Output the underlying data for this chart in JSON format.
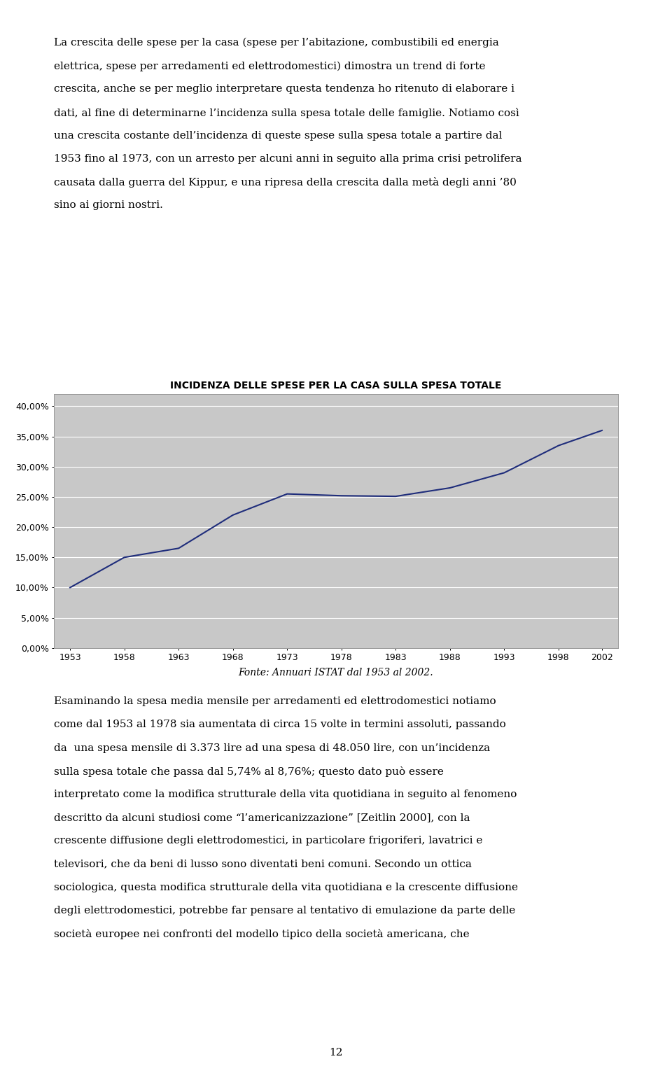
{
  "title": "INCIDENZA DELLE SPESE PER LA CASA SULLA SPESA TOTALE",
  "years": [
    1953,
    1958,
    1963,
    1968,
    1973,
    1978,
    1983,
    1988,
    1993,
    1998,
    2002
  ],
  "values": [
    0.1,
    0.15,
    0.165,
    0.22,
    0.255,
    0.252,
    0.251,
    0.265,
    0.29,
    0.335,
    0.36
  ],
  "line_color": "#1F2D7B",
  "plot_bg": "#C8C8C8",
  "outer_bg": "#FFFFFF",
  "ylim": [
    0.0,
    0.42
  ],
  "yticks": [
    0.0,
    0.05,
    0.1,
    0.15,
    0.2,
    0.25,
    0.3,
    0.35,
    0.4
  ],
  "ytick_labels": [
    "0,00%",
    "5,00%",
    "10,00%",
    "15,00%",
    "20,00%",
    "25,00%",
    "30,00%",
    "35,00%",
    "40,00%"
  ],
  "caption": "Fonte: Annuari ISTAT dal 1953 al 2002.",
  "title_fontsize": 10,
  "tick_fontsize": 9,
  "caption_fontsize": 10,
  "text_fontsize": 11,
  "top_lines": [
    "La crescita delle spese per la casa (spese per l’abitazione, combustibili ed energia",
    "elettrica, spese per arredamenti ed elettrodomestici) dimostra un trend di forte",
    "crescita, anche se per meglio interpretare questa tendenza ho ritenuto di elaborare i",
    "dati, al fine di determinarne l’incidenza sulla spesa totale delle famiglie. Notiamo così",
    "una crescita costante dell’incidenza di queste spese sulla spesa totale a partire dal",
    "1953 fino al 1973, con un arresto per alcuni anni in seguito alla prima crisi petrolifera",
    "causata dalla guerra del Kippur, e una ripresa della crescita dalla metà degli anni ’80",
    "sino ai giorni nostri."
  ],
  "bottom_lines": [
    "Esaminando la spesa media mensile per arredamenti ed elettrodomestici notiamo",
    "come dal 1953 al 1978 sia aumentata di circa 15 volte in termini assoluti, passando",
    "da  una spesa mensile di 3.373 lire ad una spesa di 48.050 lire, con un’incidenza",
    "sulla spesa totale che passa dal 5,74% al 8,76%; questo dato può essere",
    "interpretato come la modifica strutturale della vita quotidiana in seguito al fenomeno",
    "descritto da alcuni studiosi come “l’americanizzazione” [Zeitlin 2000], con la",
    "crescente diffusione degli elettrodomestici, in particolare frigoriferi, lavatrici e",
    "televisori, che da beni di lusso sono diventati beni comuni. Secondo un ottica",
    "sociologica, questa modifica strutturale della vita quotidiana e la crescente diffusione",
    "degli elettrodomestici, potrebbe far pensare al tentativo di emulazione da parte delle",
    "società europee nei confronti del modello tipico della società americana, che"
  ],
  "page_number": "12"
}
